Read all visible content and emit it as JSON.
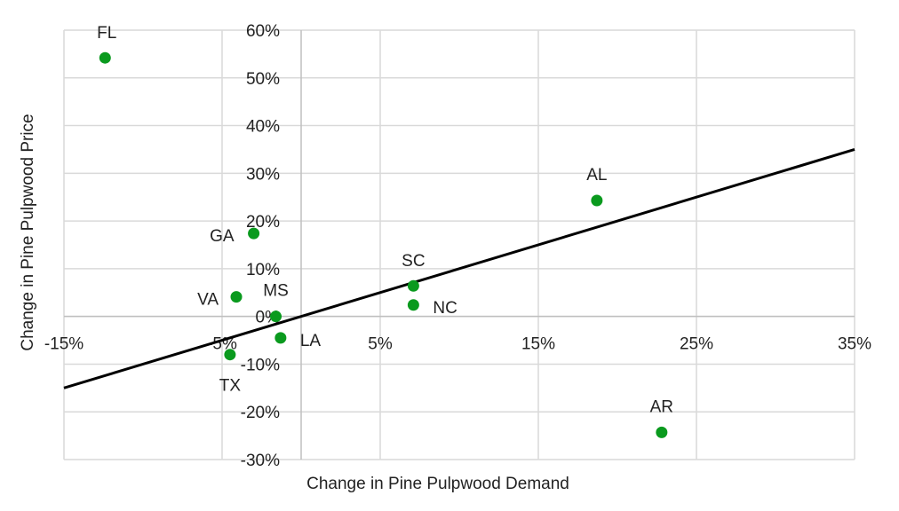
{
  "chart_data": {
    "type": "scatter",
    "title": "",
    "xlabel": "Change in Pine Pulpwood Demand",
    "ylabel": "Change in Pine Pulpwood Price",
    "xlim": [
      -15,
      35
    ],
    "ylim": [
      -30,
      60
    ],
    "x_ticks": [
      "-15%",
      "-5%",
      "5%",
      "15%",
      "25%",
      "35%"
    ],
    "y_ticks": [
      "60%",
      "50%",
      "40%",
      "30%",
      "20%",
      "10%",
      "0%",
      "-10%",
      "-20%",
      "-30%"
    ],
    "grid": true,
    "legend": null,
    "marker_color": "#0a9a1e",
    "trendline": {
      "type": "linear",
      "x": [
        -15,
        35
      ],
      "y": [
        -15,
        35
      ],
      "color": "#000000"
    },
    "points": [
      {
        "label": "FL",
        "x": -12.4,
        "y": 54.2
      },
      {
        "label": "GA",
        "x": -3.0,
        "y": 17.4
      },
      {
        "label": "VA",
        "x": -4.1,
        "y": 4.1
      },
      {
        "label": "MS",
        "x": -1.6,
        "y": 0.0
      },
      {
        "label": "LA",
        "x": -1.3,
        "y": -4.5
      },
      {
        "label": "TX",
        "x": -4.5,
        "y": -8.0
      },
      {
        "label": "SC",
        "x": 7.1,
        "y": 6.4
      },
      {
        "label": "NC",
        "x": 7.1,
        "y": 2.4
      },
      {
        "label": "AL",
        "x": 18.7,
        "y": 24.3
      },
      {
        "label": "AR",
        "x": 22.8,
        "y": -24.3
      }
    ]
  }
}
